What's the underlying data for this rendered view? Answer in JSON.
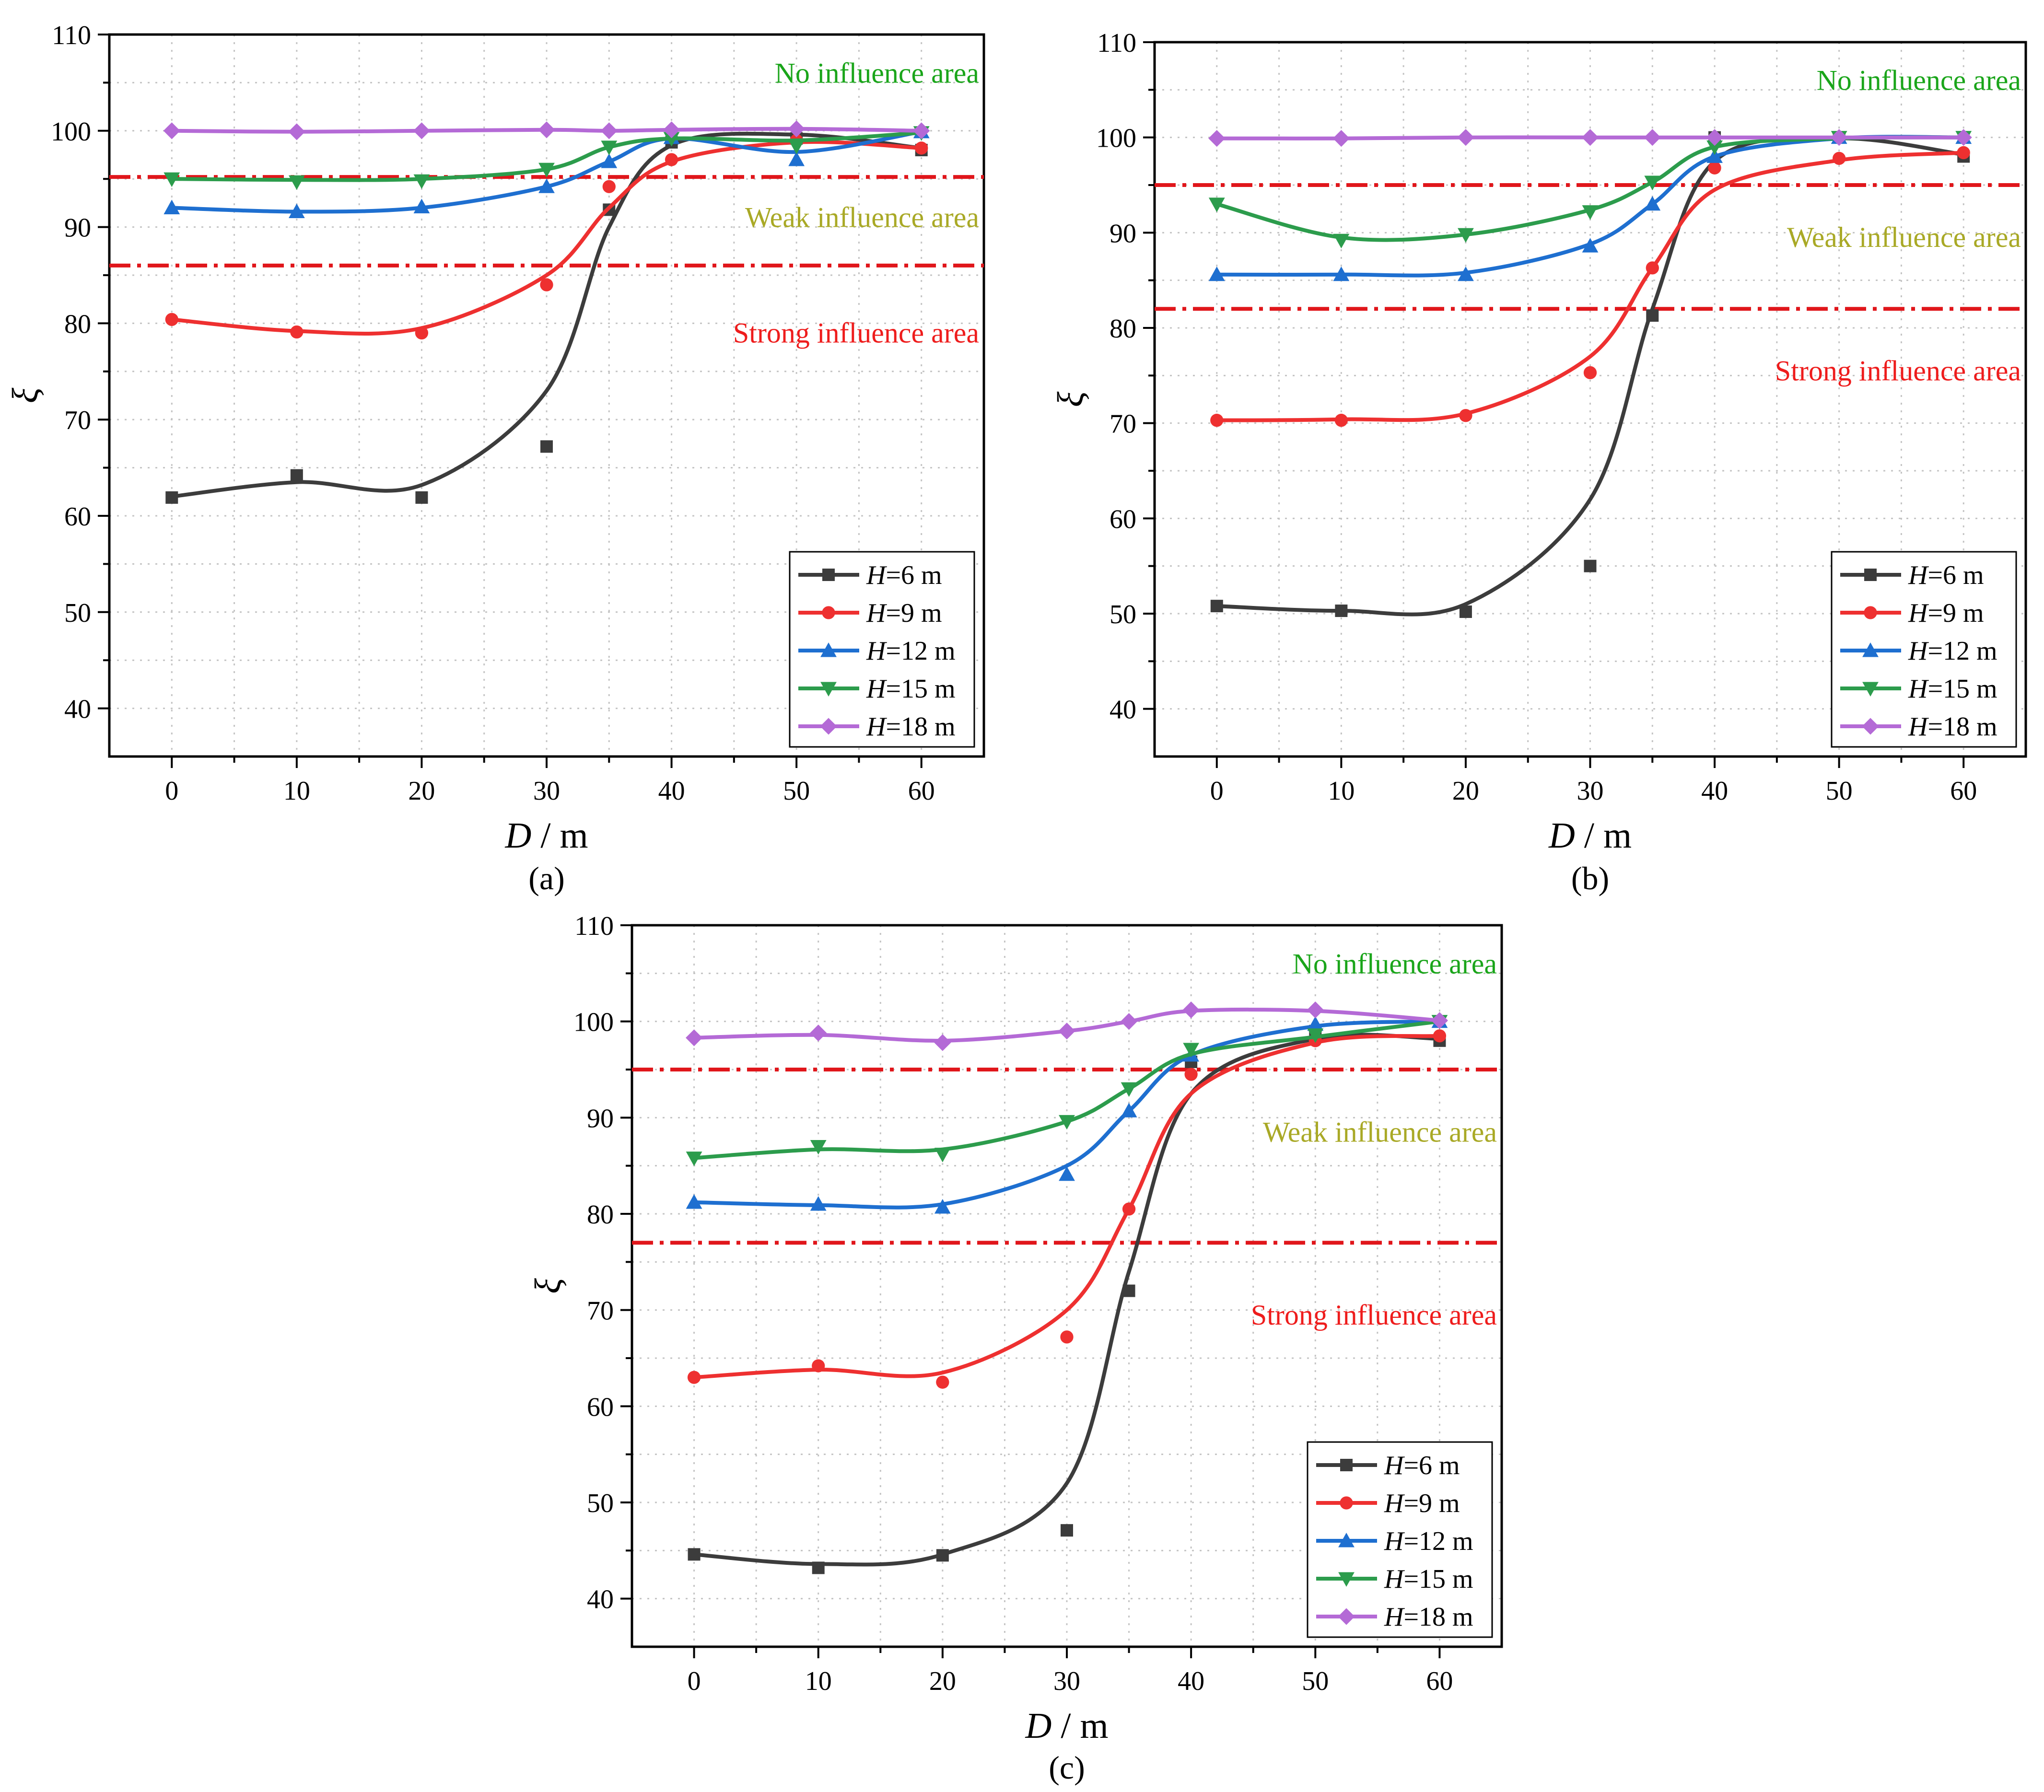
{
  "chart_data": [
    {
      "type": "line",
      "panel_label": "(a)",
      "xlabel_var": "D",
      "xlabel_unit": " / m",
      "ylabel": "ξ",
      "xlim": [
        -5,
        65
      ],
      "ylim": [
        35,
        110
      ],
      "x_ticks": [
        0,
        10,
        20,
        30,
        40,
        50,
        60
      ],
      "y_ticks": [
        40,
        50,
        60,
        70,
        80,
        90,
        100,
        110
      ],
      "thresholds": [
        95.2,
        86
      ],
      "regions": [
        {
          "label": "No influence area",
          "color": "#1aa51a",
          "y": 105
        },
        {
          "label": "Weak influence area",
          "color": "#a9a926",
          "y": 90
        },
        {
          "label": "Strong influence area",
          "color": "#ee1c1c",
          "y": 78
        }
      ],
      "legend_position": "bottom-right",
      "x": [
        0,
        10,
        20,
        30,
        35,
        40,
        50,
        60
      ],
      "series": [
        {
          "name": "6 m",
          "color": "#3c3c3c",
          "marker": "square",
          "values": [
            61.9,
            64.2,
            61.9,
            67.2,
            91.8,
            98.8,
            99.2,
            98.0
          ],
          "curve": [
            62,
            63.5,
            63.2,
            73,
            90,
            98.5,
            99.6,
            98.2
          ]
        },
        {
          "name": "9 m",
          "color": "#ee3030",
          "marker": "circle",
          "values": [
            80.4,
            79.1,
            79.0,
            84.0,
            94.2,
            97.0,
            99.0,
            98.2
          ],
          "curve": [
            80.4,
            79.2,
            79.5,
            85,
            92,
            96.8,
            98.8,
            98.2
          ]
        },
        {
          "name": "12 m",
          "color": "#1e6fd0",
          "marker": "triangle-up",
          "values": [
            92.0,
            91.6,
            92.1,
            94.2,
            96.8,
            99.3,
            97.0,
            99.9
          ],
          "curve": [
            92,
            91.6,
            92,
            94.2,
            96.8,
            99.2,
            97.8,
            99.9
          ]
        },
        {
          "name": "15 m",
          "color": "#2c9c4c",
          "marker": "triangle-down",
          "values": [
            95.0,
            94.7,
            94.8,
            96.0,
            98.3,
            99.2,
            98.4,
            99.8
          ],
          "curve": [
            95,
            94.9,
            95,
            96,
            98.3,
            99.2,
            99,
            99.8
          ]
        },
        {
          "name": "18 m",
          "color": "#b46ad6",
          "marker": "diamond",
          "values": [
            100.0,
            99.9,
            100.0,
            100.1,
            100.0,
            100.1,
            100.2,
            100.0
          ],
          "curve": [
            100,
            99.9,
            100,
            100.1,
            100,
            100.1,
            100.2,
            100
          ]
        }
      ]
    },
    {
      "type": "line",
      "panel_label": "(b)",
      "xlabel_var": "D",
      "xlabel_unit": " / m",
      "ylabel": "ξ",
      "xlim": [
        -5,
        65
      ],
      "ylim": [
        35,
        110
      ],
      "x_ticks": [
        0,
        10,
        20,
        30,
        40,
        50,
        60
      ],
      "y_ticks": [
        40,
        50,
        60,
        70,
        80,
        90,
        100,
        110
      ],
      "thresholds": [
        95,
        82
      ],
      "regions": [
        {
          "label": "No influence area",
          "color": "#1aa51a",
          "y": 105
        },
        {
          "label": "Weak influence area",
          "color": "#a9a926",
          "y": 88.5
        },
        {
          "label": "Strong influence area",
          "color": "#ee1c1c",
          "y": 74.5
        }
      ],
      "legend_position": "bottom-right",
      "x": [
        0,
        10,
        20,
        30,
        35,
        40,
        50,
        60
      ],
      "series": [
        {
          "name": "6 m",
          "color": "#3c3c3c",
          "marker": "square",
          "values": [
            50.8,
            50.3,
            50.2,
            55.0,
            81.3,
            100.0,
            100.0,
            98.0
          ],
          "curve": [
            50.8,
            50.3,
            51,
            62,
            82,
            97.5,
            99.9,
            98.2
          ]
        },
        {
          "name": "9 m",
          "color": "#ee3030",
          "marker": "circle",
          "values": [
            70.3,
            70.3,
            70.8,
            75.3,
            86.3,
            96.8,
            97.8,
            98.4
          ],
          "curve": [
            70.3,
            70.4,
            71,
            77,
            86.3,
            94.5,
            97.6,
            98.4
          ]
        },
        {
          "name": "12 m",
          "color": "#1e6fd0",
          "marker": "triangle-up",
          "values": [
            85.6,
            85.6,
            85.6,
            88.6,
            93.0,
            98.0,
            100.0,
            100.0
          ],
          "curve": [
            85.6,
            85.6,
            85.8,
            88.8,
            93,
            98,
            99.9,
            100
          ]
        },
        {
          "name": "15 m",
          "color": "#2c9c4c",
          "marker": "triangle-down",
          "values": [
            93.0,
            89.2,
            89.8,
            92.2,
            95.3,
            99.0,
            100.0,
            100.0
          ],
          "curve": [
            93,
            89.5,
            89.8,
            92.4,
            95.3,
            99,
            99.9,
            100
          ]
        },
        {
          "name": "18 m",
          "color": "#b46ad6",
          "marker": "diamond",
          "values": [
            99.9,
            99.9,
            100.0,
            100.0,
            100.0,
            100.0,
            100.0,
            100.0
          ],
          "curve": [
            99.9,
            99.9,
            100,
            100,
            100,
            100,
            100,
            100
          ]
        }
      ]
    },
    {
      "type": "line",
      "panel_label": "(c)",
      "xlabel_var": "D",
      "xlabel_unit": " / m",
      "ylabel": "ξ",
      "xlim": [
        -5,
        65
      ],
      "ylim": [
        35,
        110
      ],
      "x_ticks": [
        0,
        10,
        20,
        30,
        40,
        50,
        60
      ],
      "y_ticks": [
        40,
        50,
        60,
        70,
        80,
        90,
        100,
        110
      ],
      "thresholds": [
        95,
        77
      ],
      "regions": [
        {
          "label": "No influence area",
          "color": "#1aa51a",
          "y": 105
        },
        {
          "label": "Weak influence area",
          "color": "#a9a926",
          "y": 87.5
        },
        {
          "label": "Strong influence area",
          "color": "#ee1c1c",
          "y": 68.5
        }
      ],
      "legend_position": "bottom-right",
      "x": [
        0,
        10,
        20,
        30,
        35,
        40,
        50,
        60
      ],
      "series": [
        {
          "name": "6 m",
          "color": "#3c3c3c",
          "marker": "square",
          "values": [
            44.6,
            43.2,
            44.5,
            47.1,
            72.0,
            95.8,
            99.0,
            98.0
          ],
          "curve": [
            44.6,
            43.6,
            44.6,
            52,
            74,
            92.5,
            98.2,
            98.2
          ]
        },
        {
          "name": "9 m",
          "color": "#ee3030",
          "marker": "circle",
          "values": [
            63.0,
            64.2,
            62.5,
            67.2,
            80.5,
            94.5,
            98.0,
            98.5
          ],
          "curve": [
            63,
            63.8,
            63.5,
            70,
            80.5,
            92.5,
            97.8,
            98.5
          ]
        },
        {
          "name": "12 m",
          "color": "#1e6fd0",
          "marker": "triangle-up",
          "values": [
            81.2,
            81.0,
            80.7,
            84.1,
            90.7,
            96.5,
            99.7,
            100.0
          ],
          "curve": [
            81.2,
            80.9,
            81,
            85,
            90.7,
            96.5,
            99.5,
            100
          ]
        },
        {
          "name": "15 m",
          "color": "#2c9c4c",
          "marker": "triangle-down",
          "values": [
            85.8,
            87.0,
            86.2,
            89.6,
            93.0,
            97.1,
            98.6,
            100.0
          ],
          "curve": [
            85.8,
            86.7,
            86.7,
            89.6,
            93,
            96.6,
            98.4,
            100
          ]
        },
        {
          "name": "18 m",
          "color": "#b46ad6",
          "marker": "diamond",
          "values": [
            98.3,
            98.8,
            97.8,
            99.0,
            100.0,
            101.2,
            101.2,
            100.1
          ],
          "curve": [
            98.3,
            98.6,
            98,
            99,
            100,
            101.1,
            101.1,
            100.1
          ]
        }
      ]
    }
  ]
}
